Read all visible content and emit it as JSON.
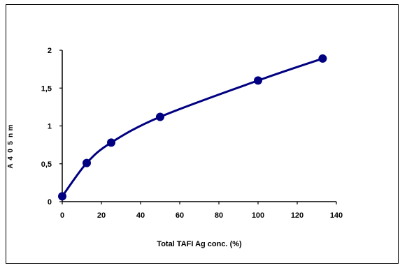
{
  "chart_data": {
    "type": "line",
    "x": [
      0,
      12.5,
      25,
      50,
      100,
      133
    ],
    "series": [
      {
        "values": [
          0.07,
          0.51,
          0.78,
          1.12,
          1.6,
          1.89
        ]
      }
    ],
    "xlabel": "Total TAFI Ag  conc. (%)",
    "ylabel": "A405nm",
    "xlim": [
      0,
      140
    ],
    "ylim": [
      0,
      2
    ],
    "x_ticks": [
      "0",
      "20",
      "40",
      "60",
      "80",
      "100",
      "120",
      "140"
    ],
    "y_ticks": [
      "0",
      "0,5",
      "1",
      "1,5",
      "2"
    ],
    "grid": false,
    "color": "#000080"
  }
}
